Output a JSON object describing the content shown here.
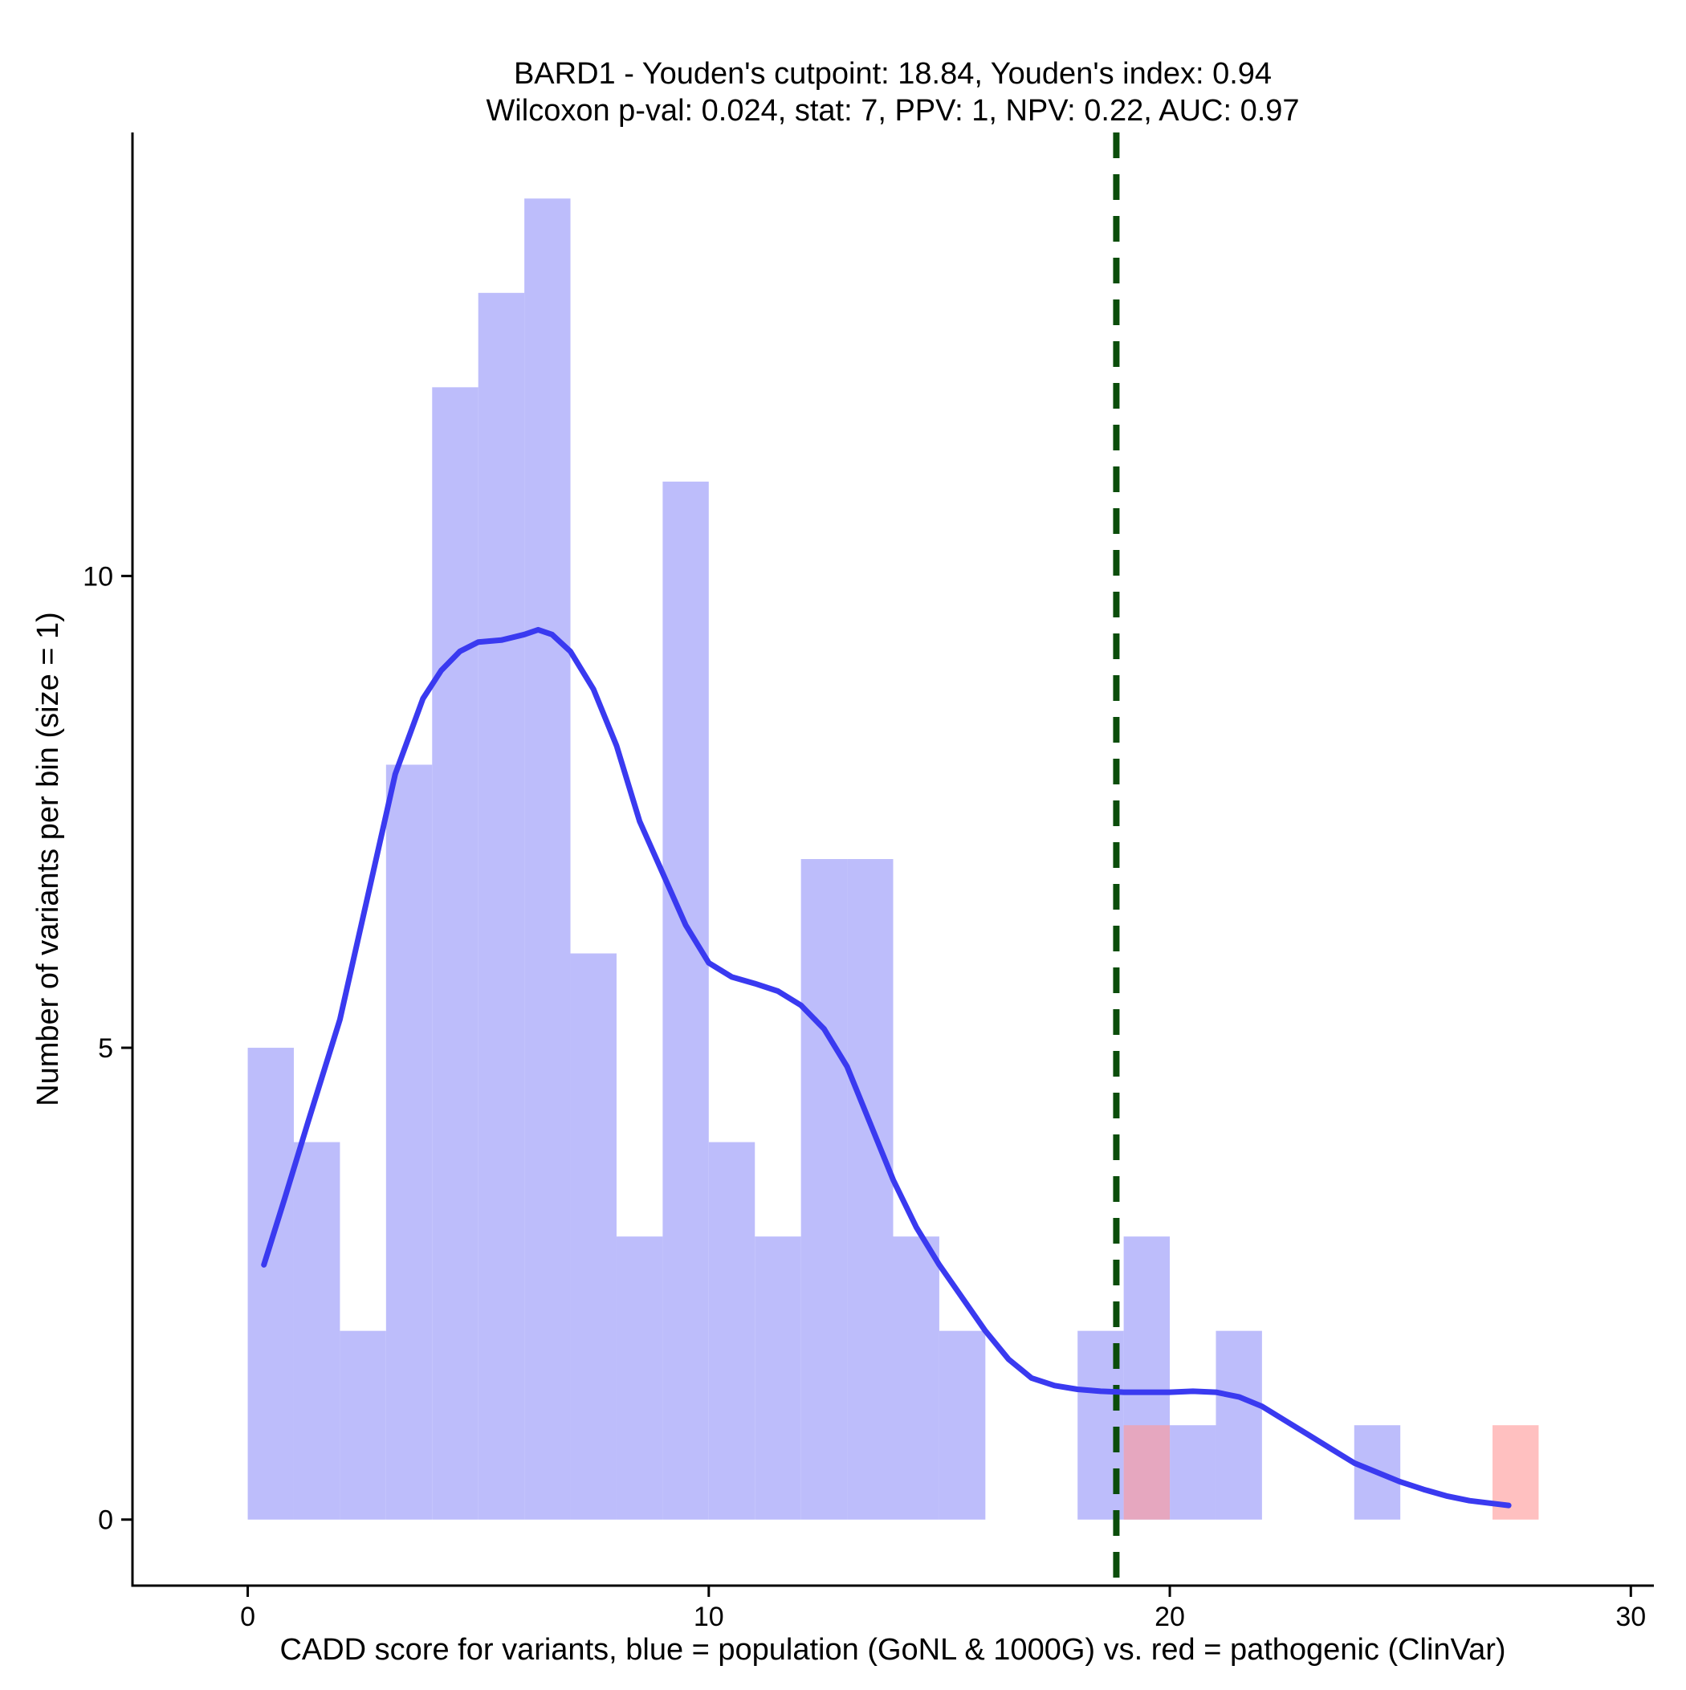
{
  "chart_data": {
    "type": "bar",
    "title": "BARD1 - Youden's cutpoint: 18.84, Youden's index: 0.94",
    "subtitle": "Wilcoxon p-val: 0.024, stat: 7, PPV: 1, NPV: 0.22, AUC: 0.97",
    "xlabel": "CADD score for variants, blue = population (GoNL & 1000G) vs. red = pathogenic (ClinVar)",
    "ylabel": "Number of variants per bin (size = 1)",
    "xlim": [
      -2.5,
      30.5
    ],
    "ylim": [
      -0.7,
      14.7
    ],
    "x_ticks": [
      0,
      10,
      20,
      30
    ],
    "y_ticks": [
      0,
      5,
      10
    ],
    "bin_size": 1,
    "grid": false,
    "cutpoint": 18.84,
    "series": [
      {
        "name": "population (GoNL & 1000G)",
        "color": "#bdbdfb",
        "bins": [
          {
            "x0": 0,
            "x1": 1,
            "count": 5
          },
          {
            "x0": 1,
            "x1": 2,
            "count": 4
          },
          {
            "x0": 2,
            "x1": 3,
            "count": 2
          },
          {
            "x0": 3,
            "x1": 4,
            "count": 8
          },
          {
            "x0": 4,
            "x1": 5,
            "count": 12
          },
          {
            "x0": 5,
            "x1": 6,
            "count": 13
          },
          {
            "x0": 6,
            "x1": 7,
            "count": 14
          },
          {
            "x0": 7,
            "x1": 8,
            "count": 6
          },
          {
            "x0": 8,
            "x1": 9,
            "count": 3
          },
          {
            "x0": 9,
            "x1": 10,
            "count": 11
          },
          {
            "x0": 10,
            "x1": 11,
            "count": 4
          },
          {
            "x0": 11,
            "x1": 12,
            "count": 3
          },
          {
            "x0": 12,
            "x1": 13,
            "count": 7
          },
          {
            "x0": 13,
            "x1": 14,
            "count": 7
          },
          {
            "x0": 14,
            "x1": 15,
            "count": 3
          },
          {
            "x0": 15,
            "x1": 16,
            "count": 2
          },
          {
            "x0": 18,
            "x1": 19,
            "count": 2
          },
          {
            "x0": 19,
            "x1": 20,
            "count": 3
          },
          {
            "x0": 20,
            "x1": 21,
            "count": 1
          },
          {
            "x0": 21,
            "x1": 22,
            "count": 2
          },
          {
            "x0": 24,
            "x1": 25,
            "count": 1
          }
        ]
      },
      {
        "name": "pathogenic (ClinVar)",
        "color": "#ff9999",
        "bins": [
          {
            "x0": 19,
            "x1": 20,
            "count": 1
          },
          {
            "x0": 27,
            "x1": 28,
            "count": 1
          }
        ]
      }
    ],
    "density_curve": {
      "color": "#3a3af0",
      "points": [
        [
          0.35,
          2.7
        ],
        [
          0.8,
          3.4
        ],
        [
          1.3,
          4.2
        ],
        [
          2.0,
          5.3
        ],
        [
          2.6,
          6.6
        ],
        [
          3.2,
          7.9
        ],
        [
          3.8,
          8.7
        ],
        [
          4.2,
          9.0
        ],
        [
          4.6,
          9.2
        ],
        [
          5.0,
          9.3
        ],
        [
          5.5,
          9.32
        ],
        [
          6.0,
          9.38
        ],
        [
          6.3,
          9.43
        ],
        [
          6.6,
          9.38
        ],
        [
          7.0,
          9.2
        ],
        [
          7.5,
          8.8
        ],
        [
          8.0,
          8.2
        ],
        [
          8.5,
          7.4
        ],
        [
          9.0,
          6.85
        ],
        [
          9.5,
          6.3
        ],
        [
          10.0,
          5.9
        ],
        [
          10.5,
          5.75
        ],
        [
          11.0,
          5.68
        ],
        [
          11.5,
          5.6
        ],
        [
          12.0,
          5.45
        ],
        [
          12.5,
          5.2
        ],
        [
          13.0,
          4.8
        ],
        [
          13.5,
          4.2
        ],
        [
          14.0,
          3.6
        ],
        [
          14.5,
          3.1
        ],
        [
          15.0,
          2.7
        ],
        [
          15.5,
          2.35
        ],
        [
          16.0,
          2.0
        ],
        [
          16.5,
          1.7
        ],
        [
          17.0,
          1.5
        ],
        [
          17.5,
          1.42
        ],
        [
          18.0,
          1.38
        ],
        [
          18.5,
          1.36
        ],
        [
          19.0,
          1.35
        ],
        [
          19.5,
          1.35
        ],
        [
          20.0,
          1.35
        ],
        [
          20.5,
          1.36
        ],
        [
          21.0,
          1.35
        ],
        [
          21.5,
          1.3
        ],
        [
          22.0,
          1.2
        ],
        [
          22.5,
          1.05
        ],
        [
          23.0,
          0.9
        ],
        [
          23.5,
          0.75
        ],
        [
          24.0,
          0.6
        ],
        [
          24.5,
          0.5
        ],
        [
          25.0,
          0.4
        ],
        [
          25.5,
          0.32
        ],
        [
          26.0,
          0.25
        ],
        [
          26.5,
          0.2
        ],
        [
          27.0,
          0.17
        ],
        [
          27.35,
          0.15
        ]
      ]
    }
  }
}
